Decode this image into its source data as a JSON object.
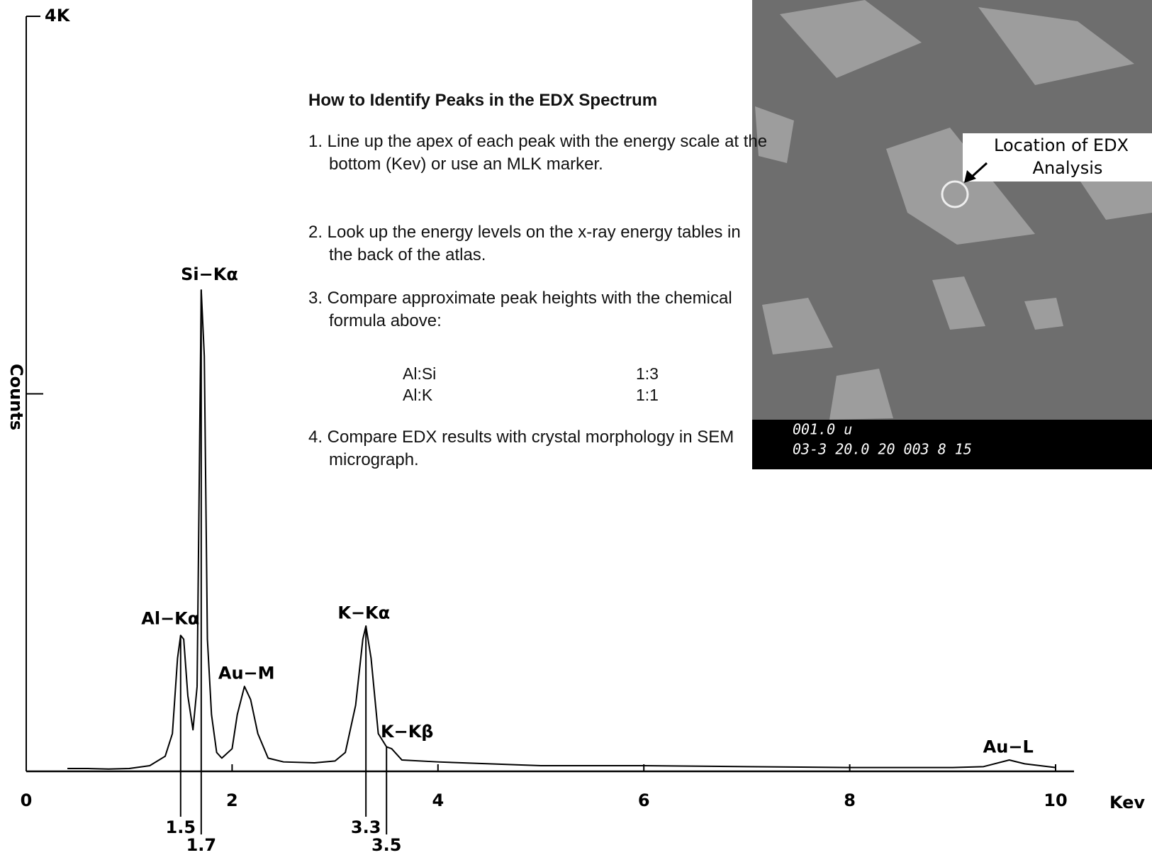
{
  "chart_data": {
    "type": "line",
    "y_label": "Counts",
    "x_label": "Kev",
    "x": [
      0.4,
      0.6,
      0.8,
      1.0,
      1.2,
      1.35,
      1.42,
      1.47,
      1.5,
      1.53,
      1.57,
      1.62,
      1.66,
      1.7,
      1.73,
      1.76,
      1.8,
      1.85,
      1.9,
      2.0,
      2.05,
      2.12,
      2.18,
      2.25,
      2.35,
      2.5,
      2.8,
      3.0,
      3.1,
      3.2,
      3.27,
      3.3,
      3.35,
      3.42,
      3.5,
      3.55,
      3.65,
      4.0,
      5.0,
      6.0,
      7.0,
      8.0,
      9.0,
      9.3,
      9.55,
      9.7,
      10.0
    ],
    "series": [
      {
        "color": "#000000",
        "values": [
          15,
          15,
          12,
          15,
          30,
          80,
          200,
          600,
          720,
          700,
          400,
          220,
          450,
          2550,
          2200,
          700,
          300,
          100,
          70,
          120,
          300,
          450,
          380,
          200,
          70,
          50,
          45,
          55,
          100,
          350,
          700,
          770,
          600,
          200,
          130,
          120,
          60,
          50,
          30,
          30,
          25,
          20,
          20,
          25,
          60,
          40,
          20
        ]
      }
    ],
    "xlim": [
      0,
      10
    ],
    "ylim": [
      0,
      4000
    ],
    "xticks": [
      0,
      2,
      4,
      6,
      8,
      10
    ],
    "yticks": [
      {
        "value": 2000,
        "label": null
      },
      {
        "value": 4000,
        "label": "4K"
      }
    ],
    "peak_markers": [
      1.5,
      1.7,
      3.3,
      3.5
    ],
    "annotations": [
      {
        "text": "Al−Kα",
        "x": 1.4,
        "y": 805
      },
      {
        "text": "Si−Kα",
        "x": 1.78,
        "y": 2630
      },
      {
        "text": "Au−M",
        "x": 2.14,
        "y": 517
      },
      {
        "text": "K−Kα",
        "x": 3.28,
        "y": 836
      },
      {
        "text": "K−Kβ",
        "x": 3.7,
        "y": 206
      },
      {
        "text": "Au−L",
        "x": 9.54,
        "y": 125
      }
    ]
  },
  "instructions": {
    "title": "How to Identify Peaks in the EDX Spectrum",
    "steps": [
      "1. Line up the apex of each peak with the energy scale at the bottom (Kev) or use an MLK marker.",
      "2. Look up the energy levels on the x-ray energy tables in the back of the atlas.",
      "3. Compare approximate peak heights with the chemical formula above:",
      "4. Compare EDX results with crystal morphology in SEM micrograph."
    ],
    "ratios": [
      [
        "Al:Si",
        "1:3"
      ],
      [
        "Al:K",
        "1:1"
      ]
    ]
  },
  "micrograph": {
    "callout": [
      "Location of EDX",
      "Analysis"
    ],
    "scale_text": "001.0 u",
    "info_text": "03-3 20.0 20 003 8 15"
  }
}
